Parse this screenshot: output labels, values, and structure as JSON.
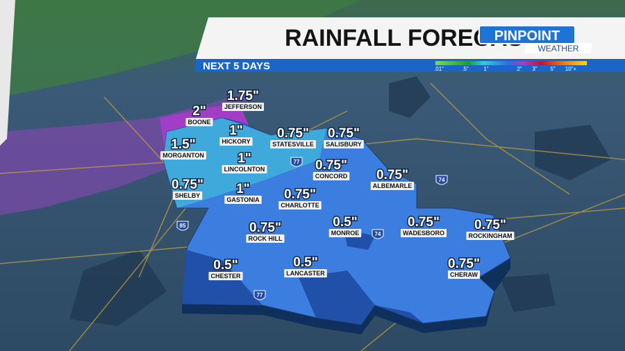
{
  "header": {
    "title": "RAINFALL FORECAST",
    "subtitle": "NEXT 5 DAYS",
    "logo": {
      "line1": "PINPOINT",
      "line2": "WEATHER"
    }
  },
  "legend": {
    "labels": [
      ".01\"",
      ".5\"",
      "1\"",
      "2\"",
      "3\"",
      "5\"",
      "10\"+"
    ]
  },
  "cities": [
    {
      "name": "JEFFERSON",
      "amount": "1.75\""
    },
    {
      "name": "BOONE",
      "amount": "2\""
    },
    {
      "name": "HICKORY",
      "amount": "1\""
    },
    {
      "name": "MORGANTON",
      "amount": "1.5\""
    },
    {
      "name": "STATESVILLE",
      "amount": "0.75\""
    },
    {
      "name": "SALISBURY",
      "amount": "0.75\""
    },
    {
      "name": "LINCOLNTON",
      "amount": "1\""
    },
    {
      "name": "CONCORD",
      "amount": "0.75\""
    },
    {
      "name": "ALBEMARLE",
      "amount": "0.75\""
    },
    {
      "name": "SHELBY",
      "amount": "0.75\""
    },
    {
      "name": "GASTONIA",
      "amount": "1\""
    },
    {
      "name": "CHARLOTTE",
      "amount": "0.75\""
    },
    {
      "name": "MONROE",
      "amount": "0.5\""
    },
    {
      "name": "WADESBORO",
      "amount": "0.75\""
    },
    {
      "name": "ROCKINGHAM",
      "amount": "0.75\""
    },
    {
      "name": "ROCK HILL",
      "amount": "0.75\""
    },
    {
      "name": "CHESTER",
      "amount": "0.5\""
    },
    {
      "name": "LANCASTER",
      "amount": "0.5\""
    },
    {
      "name": "CHERAW",
      "amount": "0.75\""
    }
  ],
  "highways": [
    "77",
    "85",
    "74",
    "74",
    "77"
  ]
}
